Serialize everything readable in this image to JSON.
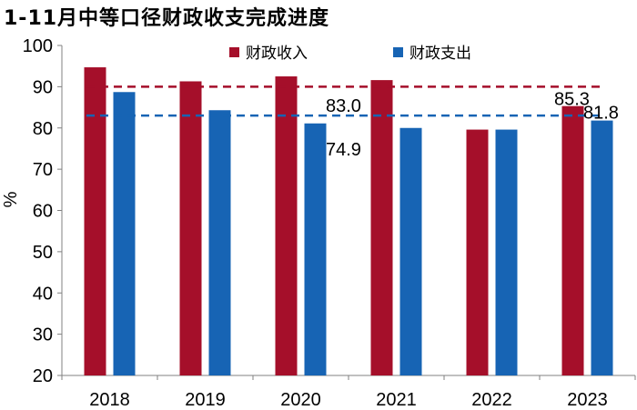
{
  "title": "1-11月中等口径财政收支完成进度",
  "chart_data": {
    "type": "bar",
    "title": "1-11月中等口径财政收支完成进度",
    "categories": [
      "2018",
      "2019",
      "2020",
      "2021",
      "2022",
      "2023"
    ],
    "series": [
      {
        "name": "财政收入",
        "color": "#A50F2A",
        "values": [
          94.7,
          91.3,
          92.5,
          91.6,
          79.6,
          85.3
        ]
      },
      {
        "name": "财政支出",
        "color": "#1764B4",
        "values": [
          88.7,
          84.3,
          81.1,
          80.0,
          79.6,
          81.8
        ]
      }
    ],
    "reference_lines": [
      {
        "series": "财政收入",
        "value": 90.0,
        "color": "#A50F2A",
        "style": "dashed"
      },
      {
        "series": "财政支出",
        "value": 83.0,
        "color": "#1764B4",
        "style": "dashed"
      }
    ],
    "annotations": [
      {
        "text": "83.0",
        "value": 83.0
      },
      {
        "text": "74.9",
        "value": 74.9
      },
      {
        "text": "85.3",
        "value": 85.3
      },
      {
        "text": "81.8",
        "value": 81.8
      }
    ],
    "ylabel": "%",
    "xlabel": "",
    "ylim": [
      20,
      100
    ],
    "yticks": [
      "20",
      "30",
      "40",
      "50",
      "60",
      "70",
      "80",
      "90",
      "100"
    ],
    "legend": "top"
  }
}
